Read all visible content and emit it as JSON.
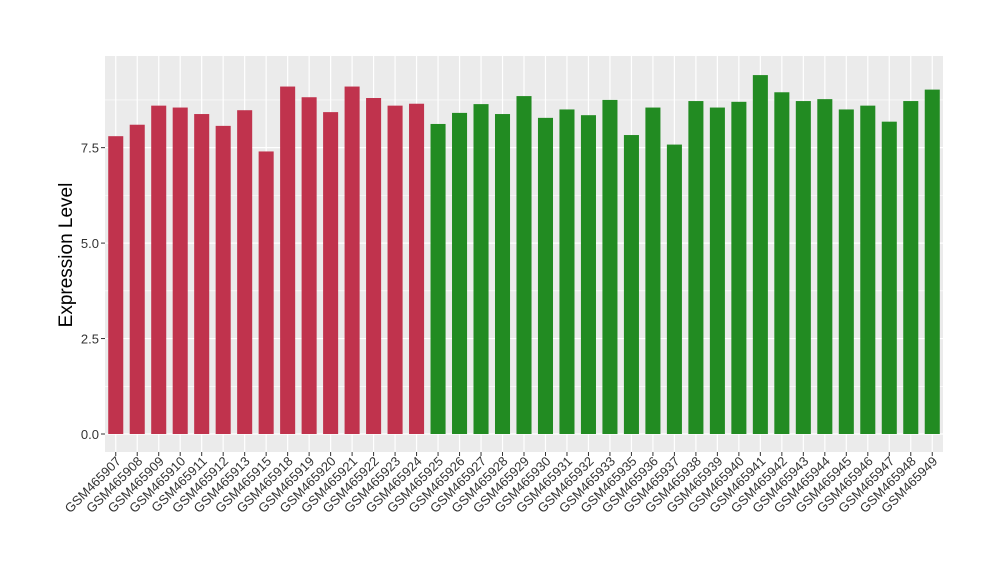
{
  "chart_data": {
    "type": "bar",
    "title": "",
    "xlabel": "",
    "ylabel": "Expression Level",
    "ylim": [
      0,
      9.9
    ],
    "yticks": [
      0,
      2.5,
      5,
      7.5
    ],
    "ytick_labels": [
      "0.0",
      "2.5",
      "5.0",
      "7.5"
    ],
    "grid": true,
    "legend": "none",
    "colors": {
      "group_1": "#c0334d",
      "group_2": "#228b22",
      "panel_bg": "#ebebeb",
      "grid": "#ffffff"
    },
    "categories": [
      "GSM465907",
      "GSM465908",
      "GSM465909",
      "GSM465910",
      "GSM465911",
      "GSM465912",
      "GSM465913",
      "GSM465915",
      "GSM465918",
      "GSM465919",
      "GSM465920",
      "GSM465921",
      "GSM465922",
      "GSM465923",
      "GSM465924",
      "GSM465925",
      "GSM465926",
      "GSM465927",
      "GSM465928",
      "GSM465929",
      "GSM465930",
      "GSM465931",
      "GSM465932",
      "GSM465933",
      "GSM465935",
      "GSM465936",
      "GSM465937",
      "GSM465938",
      "GSM465939",
      "GSM465940",
      "GSM465941",
      "GSM465942",
      "GSM465943",
      "GSM465944",
      "GSM465945",
      "GSM465946",
      "GSM465947",
      "GSM465948",
      "GSM465949"
    ],
    "values": [
      7.8,
      8.1,
      8.6,
      8.55,
      8.38,
      8.07,
      8.48,
      7.4,
      9.1,
      8.82,
      8.43,
      9.1,
      8.8,
      8.6,
      8.65,
      8.12,
      8.41,
      8.64,
      8.38,
      8.85,
      8.28,
      8.5,
      8.35,
      8.75,
      7.83,
      8.55,
      7.58,
      8.72,
      8.55,
      8.7,
      9.4,
      8.95,
      8.72,
      8.77,
      8.5,
      8.6,
      8.18,
      8.72,
      9.02
    ],
    "bar_groups": [
      "group_1",
      "group_1",
      "group_1",
      "group_1",
      "group_1",
      "group_1",
      "group_1",
      "group_1",
      "group_1",
      "group_1",
      "group_1",
      "group_1",
      "group_1",
      "group_1",
      "group_1",
      "group_2",
      "group_2",
      "group_2",
      "group_2",
      "group_2",
      "group_2",
      "group_2",
      "group_2",
      "group_2",
      "group_2",
      "group_2",
      "group_2",
      "group_2",
      "group_2",
      "group_2",
      "group_2",
      "group_2",
      "group_2",
      "group_2",
      "group_2",
      "group_2",
      "group_2",
      "group_2",
      "group_2"
    ]
  }
}
